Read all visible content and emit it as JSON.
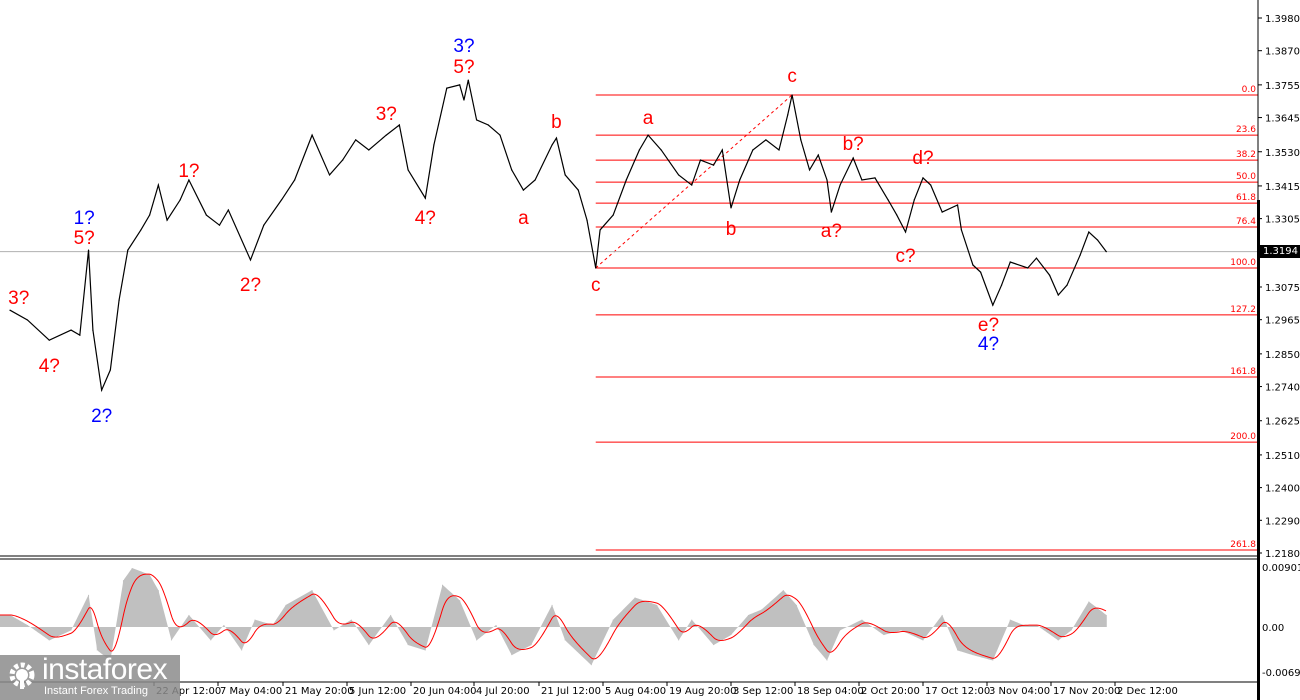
{
  "chart_data": {
    "type": "line",
    "instrument_view": "price chart with oscillator subwindow",
    "x_tick_labels": [
      "22 Apr 12:00",
      "7 May 04:00",
      "21 May 20:00",
      "5 Jun 12:00",
      "20 Jun 04:00",
      "4 Jul 20:00",
      "21 Jul 12:00",
      "5 Aug 04:00",
      "19 Aug 20:00",
      "3 Sep 12:00",
      "18 Sep 04:00",
      "2 Oct 20:00",
      "17 Oct 12:00",
      "3 Nov 04:00",
      "17 Nov 20:00",
      "2 Dec 12:00"
    ],
    "y_tick_labels": [
      "1.3980",
      "1.3870",
      "1.3755",
      "1.3645",
      "1.3530",
      "1.3415",
      "1.3305",
      "1.3075",
      "1.2965",
      "1.2850",
      "1.2740",
      "1.2625",
      "1.2510",
      "1.2400",
      "1.2290",
      "1.2180"
    ],
    "ylim": [
      1.218,
      1.398
    ],
    "current_price": "1.3194",
    "line_color": "#000000",
    "price_series": [
      [
        "03-20",
        1.2997
      ],
      [
        "03-24",
        1.2964
      ],
      [
        "03-29",
        1.2896
      ],
      [
        "04-03",
        1.293
      ],
      [
        "04-05",
        1.2913
      ],
      [
        "04-07",
        1.3199
      ],
      [
        "04-08",
        1.293
      ],
      [
        "04-10",
        1.2728
      ],
      [
        "04-12",
        1.2796
      ],
      [
        "04-14",
        1.3031
      ],
      [
        "04-16",
        1.3199
      ],
      [
        "04-19",
        1.3267
      ],
      [
        "04-21",
        1.3317
      ],
      [
        "04-23",
        1.3418
      ],
      [
        "04-25",
        1.33
      ],
      [
        "04-28",
        1.3368
      ],
      [
        "04-30",
        1.3435
      ],
      [
        "05-04",
        1.3317
      ],
      [
        "05-07",
        1.3283
      ],
      [
        "05-09",
        1.3334
      ],
      [
        "05-14",
        1.3166
      ],
      [
        "05-17",
        1.3283
      ],
      [
        "05-21",
        1.3368
      ],
      [
        "05-24",
        1.3435
      ],
      [
        "05-28",
        1.3586
      ],
      [
        "06-01",
        1.3452
      ],
      [
        "06-04",
        1.3502
      ],
      [
        "06-07",
        1.357
      ],
      [
        "06-10",
        1.3536
      ],
      [
        "06-14",
        1.3586
      ],
      [
        "06-17",
        1.362
      ],
      [
        "06-19",
        1.3469
      ],
      [
        "06-23",
        1.3374
      ],
      [
        "06-25",
        1.3553
      ],
      [
        "06-28",
        1.3744
      ],
      [
        "07-01",
        1.3755
      ],
      [
        "07-02",
        1.3704
      ],
      [
        "07-03",
        1.3771
      ],
      [
        "07-05",
        1.3637
      ],
      [
        "07-08",
        1.362
      ],
      [
        "07-11",
        1.3586
      ],
      [
        "07-14",
        1.3469
      ],
      [
        "07-17",
        1.3401
      ],
      [
        "07-20",
        1.3435
      ],
      [
        "07-24",
        1.3553
      ],
      [
        "07-25",
        1.3576
      ],
      [
        "07-27",
        1.3452
      ],
      [
        "07-30",
        1.3401
      ],
      [
        "08-01",
        1.33
      ],
      [
        "08-03",
        1.3139
      ],
      [
        "08-04",
        1.3267
      ],
      [
        "08-07",
        1.3317
      ],
      [
        "08-10",
        1.3435
      ],
      [
        "08-13",
        1.3536
      ],
      [
        "08-15",
        1.3586
      ],
      [
        "08-18",
        1.3536
      ],
      [
        "08-22",
        1.3452
      ],
      [
        "08-25",
        1.3418
      ],
      [
        "08-27",
        1.3502
      ],
      [
        "08-30",
        1.3485
      ],
      [
        "09-01",
        1.3536
      ],
      [
        "09-03",
        1.3341
      ],
      [
        "09-05",
        1.3435
      ],
      [
        "09-08",
        1.3536
      ],
      [
        "09-11",
        1.357
      ],
      [
        "09-14",
        1.3536
      ],
      [
        "09-16",
        1.3654
      ],
      [
        "09-17",
        1.3721
      ],
      [
        "09-19",
        1.357
      ],
      [
        "09-21",
        1.3469
      ],
      [
        "09-23",
        1.3519
      ],
      [
        "09-25",
        1.3435
      ],
      [
        "09-26",
        1.3327
      ],
      [
        "09-28",
        1.3418
      ],
      [
        "10-01",
        1.3509
      ],
      [
        "10-03",
        1.3435
      ],
      [
        "10-06",
        1.3442
      ],
      [
        "10-09",
        1.3368
      ],
      [
        "10-11",
        1.3317
      ],
      [
        "10-13",
        1.326
      ],
      [
        "10-15",
        1.3368
      ],
      [
        "10-17",
        1.3442
      ],
      [
        "10-19",
        1.3418
      ],
      [
        "10-22",
        1.3327
      ],
      [
        "10-26",
        1.3351
      ],
      [
        "10-27",
        1.3267
      ],
      [
        "10-30",
        1.3149
      ],
      [
        "11-01",
        1.3125
      ],
      [
        "11-04",
        1.3014
      ],
      [
        "11-06",
        1.3081
      ],
      [
        "11-08",
        1.3159
      ],
      [
        "11-12",
        1.3139
      ],
      [
        "11-14",
        1.3172
      ],
      [
        "11-17",
        1.3115
      ],
      [
        "11-19",
        1.3048
      ],
      [
        "11-21",
        1.3081
      ],
      [
        "11-24",
        1.3182
      ],
      [
        "11-26",
        1.326
      ],
      [
        "11-28",
        1.3233
      ],
      [
        "11-30",
        1.3194
      ]
    ],
    "fibonacci": {
      "color": "#ff0000",
      "start_date": "08-03",
      "swing": [
        [
          "08-03",
          1.3139
        ],
        [
          "09-17",
          1.3721
        ]
      ],
      "levels": [
        {
          "label": "0.0",
          "price": 1.3721
        },
        {
          "label": "23.6",
          "price": 1.3586
        },
        {
          "label": "38.2",
          "price": 1.3502
        },
        {
          "label": "50.0",
          "price": 1.3428
        },
        {
          "label": "61.8",
          "price": 1.3357
        },
        {
          "label": "76.4",
          "price": 1.3277
        },
        {
          "label": "100.0",
          "price": 1.3139
        },
        {
          "label": "127.2",
          "price": 1.2981
        },
        {
          "label": "161.8",
          "price": 1.2772
        },
        {
          "label": "200.0",
          "price": 1.2553
        },
        {
          "label": "261.8",
          "price": 1.219
        }
      ]
    },
    "wave_labels": [
      {
        "text": "3?",
        "color": "#ff0000",
        "date": "03-22",
        "price": 1.3041
      },
      {
        "text": "4?",
        "color": "#ff0000",
        "date": "03-29",
        "price": 1.2812
      },
      {
        "text": "1?",
        "color": "#0000ff",
        "date": "04-06",
        "price": 1.331
      },
      {
        "text": "5?",
        "color": "#ff0000",
        "date": "04-06",
        "price": 1.3243
      },
      {
        "text": "2?",
        "color": "#0000ff",
        "date": "04-10",
        "price": 1.2644
      },
      {
        "text": "1?",
        "color": "#ff0000",
        "date": "04-30",
        "price": 1.3469
      },
      {
        "text": "2?",
        "color": "#ff0000",
        "date": "05-14",
        "price": 1.3085
      },
      {
        "text": "3?",
        "color": "#ff0000",
        "date": "06-14",
        "price": 1.366
      },
      {
        "text": "4?",
        "color": "#ff0000",
        "date": "06-23",
        "price": 1.331
      },
      {
        "text": "3?",
        "color": "#0000ff",
        "date": "07-02",
        "price": 1.3889
      },
      {
        "text": "5?",
        "color": "#ff0000",
        "date": "07-02",
        "price": 1.3818
      },
      {
        "text": "a",
        "color": "#ff0000",
        "date": "07-17",
        "price": 1.331
      },
      {
        "text": "b",
        "color": "#ff0000",
        "date": "07-25",
        "price": 1.3633
      },
      {
        "text": "c",
        "color": "#ff0000",
        "date": "08-03",
        "price": 1.3085
      },
      {
        "text": "a",
        "color": "#ff0000",
        "date": "08-15",
        "price": 1.3647
      },
      {
        "text": "b",
        "color": "#ff0000",
        "date": "09-03",
        "price": 1.3273
      },
      {
        "text": "c",
        "color": "#ff0000",
        "date": "09-17",
        "price": 1.3788
      },
      {
        "text": "a?",
        "color": "#ff0000",
        "date": "09-26",
        "price": 1.3267
      },
      {
        "text": "b?",
        "color": "#ff0000",
        "date": "10-01",
        "price": 1.3559
      },
      {
        "text": "c?",
        "color": "#ff0000",
        "date": "10-13",
        "price": 1.3183
      },
      {
        "text": "d?",
        "color": "#ff0000",
        "date": "10-17",
        "price": 1.3512
      },
      {
        "text": "e?",
        "color": "#ff0000",
        "date": "11-03",
        "price": 1.295
      },
      {
        "text": "4?",
        "color": "#0000ff",
        "date": "11-03",
        "price": 1.2886
      }
    ],
    "oscillator": {
      "y_tick_labels": [
        "0.00901",
        "0.00",
        "-0.00692"
      ],
      "ylim": [
        -0.00692,
        0.00901
      ],
      "histogram_color": "#c0c0c0",
      "signal_color": "#ff0000",
      "histogram": [
        [
          "03-20",
          0.0018
        ],
        [
          "03-24",
          0.0003
        ],
        [
          "03-29",
          -0.002
        ],
        [
          "04-03",
          -0.0005
        ],
        [
          "04-07",
          0.0048
        ],
        [
          "04-09",
          -0.0035
        ],
        [
          "04-12",
          -0.005
        ],
        [
          "04-15",
          0.007
        ],
        [
          "04-17",
          0.0088
        ],
        [
          "04-21",
          0.0078
        ],
        [
          "04-23",
          0.0055
        ],
        [
          "04-26",
          -0.002
        ],
        [
          "04-30",
          0.0018
        ],
        [
          "05-05",
          -0.002
        ],
        [
          "05-08",
          0.0003
        ],
        [
          "05-12",
          -0.0035
        ],
        [
          "05-15",
          0.0011
        ],
        [
          "05-19",
          0.0003
        ],
        [
          "05-22",
          0.0033
        ],
        [
          "05-28",
          0.0055
        ],
        [
          "06-02",
          -0.0005
        ],
        [
          "06-06",
          0.0011
        ],
        [
          "06-10",
          -0.0027
        ],
        [
          "06-15",
          0.0018
        ],
        [
          "06-19",
          -0.0027
        ],
        [
          "06-23",
          -0.0035
        ],
        [
          "06-27",
          0.0063
        ],
        [
          "07-01",
          0.004
        ],
        [
          "07-05",
          -0.002
        ],
        [
          "07-10",
          0.0003
        ],
        [
          "07-14",
          -0.0042
        ],
        [
          "07-19",
          -0.0027
        ],
        [
          "07-24",
          0.0033
        ],
        [
          "07-27",
          -0.002
        ],
        [
          "08-02",
          -0.0057
        ],
        [
          "08-07",
          0.0011
        ],
        [
          "08-12",
          0.0044
        ],
        [
          "08-17",
          0.0033
        ],
        [
          "08-22",
          -0.002
        ],
        [
          "08-25",
          0.0011
        ],
        [
          "08-30",
          -0.0027
        ],
        [
          "09-03",
          -0.0012
        ],
        [
          "09-07",
          0.0018
        ],
        [
          "09-10",
          0.0026
        ],
        [
          "09-15",
          0.0055
        ],
        [
          "09-18",
          0.0033
        ],
        [
          "09-22",
          -0.0027
        ],
        [
          "09-25",
          -0.005
        ],
        [
          "09-28",
          -0.0005
        ],
        [
          "10-03",
          0.0011
        ],
        [
          "10-08",
          -0.0012
        ],
        [
          "10-12",
          -0.0005
        ],
        [
          "10-17",
          -0.002
        ],
        [
          "10-22",
          0.0018
        ],
        [
          "10-26",
          -0.0035
        ],
        [
          "10-30",
          -0.0042
        ],
        [
          "11-04",
          -0.005
        ],
        [
          "11-08",
          0.0011
        ],
        [
          "11-11",
          0.0003
        ],
        [
          "11-14",
          0.0003
        ],
        [
          "11-19",
          -0.002
        ],
        [
          "11-22",
          -0.0005
        ],
        [
          "11-26",
          0.0038
        ],
        [
          "11-30",
          0.0018
        ]
      ]
    }
  },
  "logo": {
    "name": "instaforex",
    "tagline": "Instant Forex Trading"
  }
}
